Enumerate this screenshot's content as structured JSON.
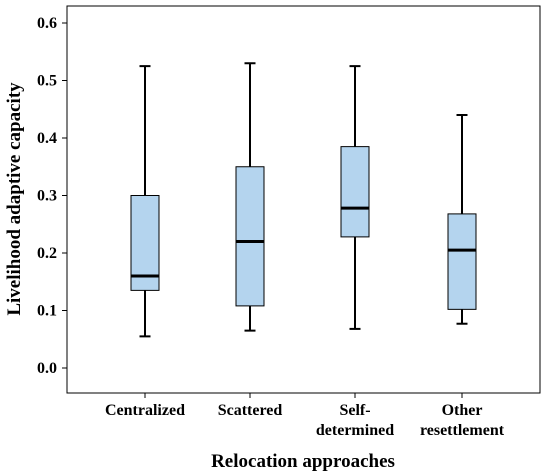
{
  "chart_data": {
    "type": "box",
    "xlabel": "Relocation approaches",
    "ylabel": "Livelihood adaptive capacity",
    "ylim": [
      0.0,
      0.6
    ],
    "yticks": [
      "0.0",
      "0.1",
      "0.2",
      "0.3",
      "0.4",
      "0.5",
      "0.6"
    ],
    "grid": false,
    "categories": [
      [
        "Centralized"
      ],
      [
        "Scattered"
      ],
      [
        "Self-",
        "determined"
      ],
      [
        "Other",
        "resettlement"
      ]
    ],
    "boxes": [
      {
        "min": 0.055,
        "q1": 0.135,
        "median": 0.16,
        "q3": 0.3,
        "max": 0.525
      },
      {
        "min": 0.065,
        "q1": 0.108,
        "median": 0.22,
        "q3": 0.35,
        "max": 0.53
      },
      {
        "min": 0.068,
        "q1": 0.228,
        "median": 0.278,
        "q3": 0.385,
        "max": 0.525
      },
      {
        "min": 0.077,
        "q1": 0.102,
        "median": 0.205,
        "q3": 0.268,
        "max": 0.44
      }
    ],
    "colors": {
      "box_fill": "#b4d4ee",
      "stroke": "#000000"
    }
  }
}
